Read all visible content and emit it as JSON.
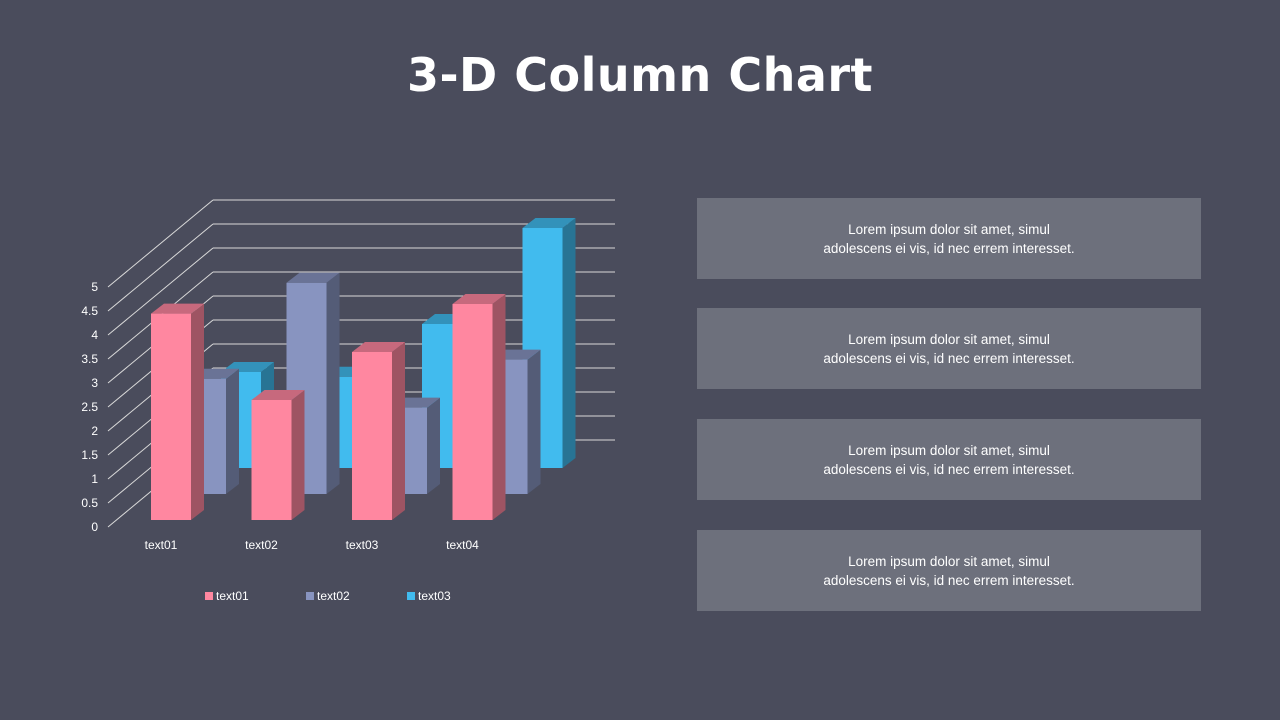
{
  "title": "3-D Column Chart",
  "chart_data": {
    "type": "bar",
    "variant": "3d-column",
    "categories": [
      "text01",
      "text02",
      "text03",
      "text04"
    ],
    "series": [
      {
        "name": "text01",
        "color": "#ff87a0",
        "values": [
          4.3,
          2.5,
          3.5,
          4.5
        ]
      },
      {
        "name": "text02",
        "color": "#8894c0",
        "values": [
          2.4,
          4.4,
          1.8,
          2.8
        ]
      },
      {
        "name": "text03",
        "color": "#41bbee",
        "values": [
          2.0,
          1.9,
          3.0,
          5.0
        ]
      }
    ],
    "y_ticks": [
      "0",
      "0.5",
      "1",
      "1.5",
      "2",
      "2.5",
      "3",
      "3.5",
      "4",
      "4.5",
      "5"
    ],
    "ylim": [
      0,
      5
    ],
    "grid": true,
    "legend": "bottom"
  },
  "boxes": [
    {
      "line1": "Lorem  ipsum dolor  sit amet,  simul",
      "line2": "adolescens ei vis, id nec errem  interesset."
    },
    {
      "line1": "Lorem  ipsum dolor  sit amet,  simul",
      "line2": "adolescens ei vis, id nec errem  interesset."
    },
    {
      "line1": "Lorem  ipsum dolor  sit amet,  simul",
      "line2": "adolescens ei vis, id nec errem  interesset."
    },
    {
      "line1": "Lorem  ipsum dolor  sit amet,  simul",
      "line2": "adolescens ei vis, id nec errem  interesset."
    }
  ]
}
